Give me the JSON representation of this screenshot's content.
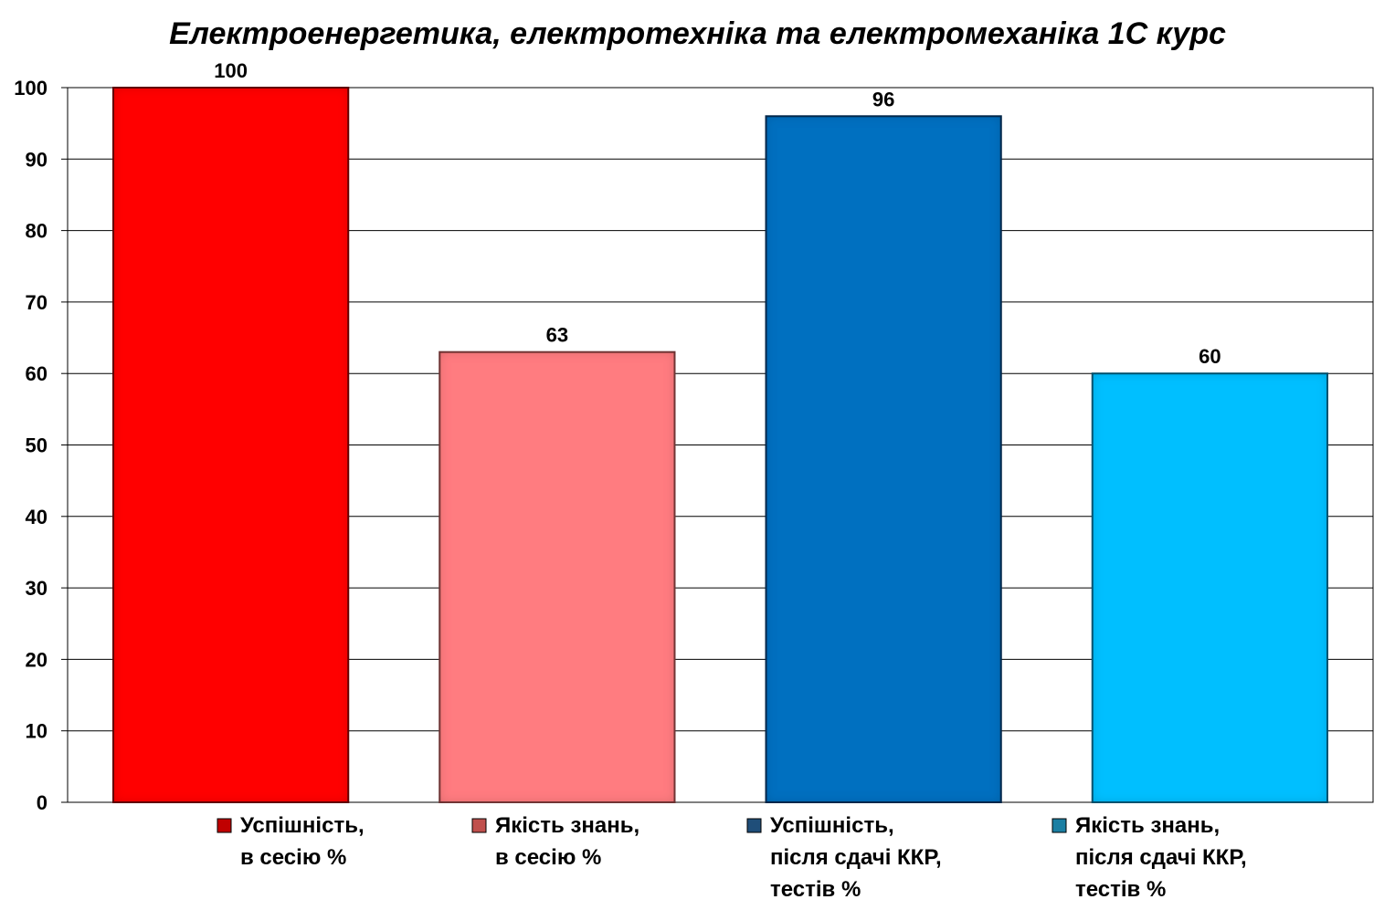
{
  "chart_data": {
    "type": "bar",
    "title": "Електроенергетика, електротехніка та електромеханіка 1С курс",
    "xlabel": "",
    "ylabel": "",
    "ylim": [
      0,
      100
    ],
    "yticks": [
      0,
      10,
      20,
      30,
      40,
      50,
      60,
      70,
      80,
      90,
      100
    ],
    "grid": true,
    "legend_position": "bottom",
    "categories": [
      "Успішність, в сесію %",
      "Якість знань, в сесію %",
      "Успішність, після сдачі ККР, тестів %",
      "Якість знань, після сдачі ККР, тестів %"
    ],
    "values": [
      100,
      63,
      96,
      60
    ],
    "data_labels": [
      "100",
      "63",
      "96",
      "60"
    ],
    "legend": [
      {
        "lines": [
          "Успішність,",
          "в сесію %"
        ],
        "color": "#c00000"
      },
      {
        "lines": [
          "Якість знань,",
          "в сесію %"
        ],
        "color": "#c0504d"
      },
      {
        "lines": [
          "Успішність,",
          "після сдачі ККР,",
          "тестів %"
        ],
        "color": "#1f4e79"
      },
      {
        "lines": [
          "Якість знань,",
          "після сдачі ККР,",
          "тестів %"
        ],
        "color": "#1b7fa3"
      }
    ],
    "colors": [
      "#ff0000",
      "#ff7c80",
      "#0070c0",
      "#00bfff"
    ],
    "border_colors": [
      "#6b0000",
      "#7a3a3a",
      "#0b2f52",
      "#0a5a78"
    ]
  }
}
